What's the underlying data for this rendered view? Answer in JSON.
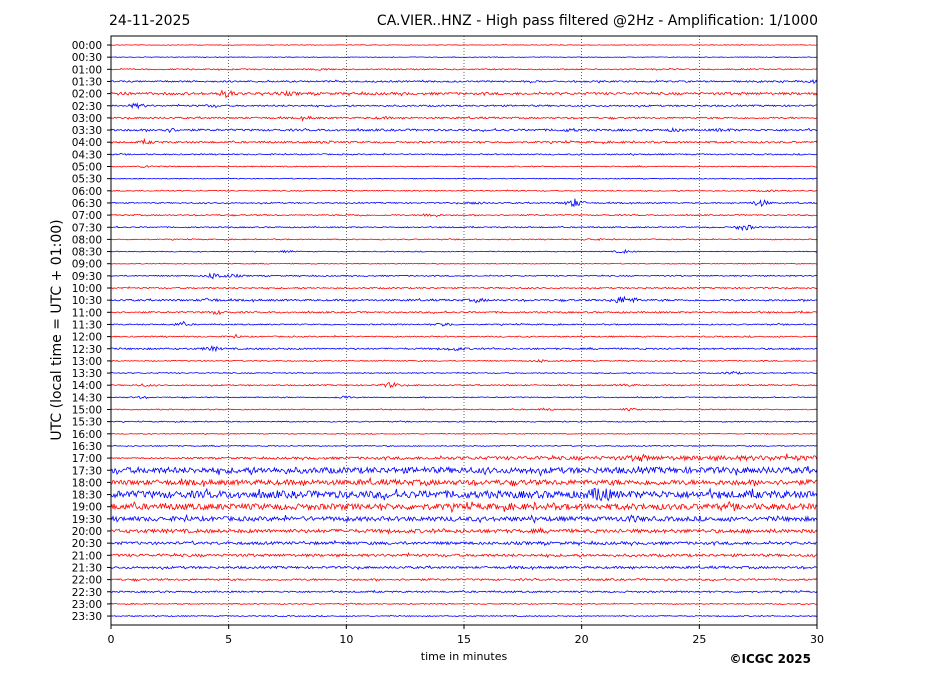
{
  "header": {
    "date": "24-11-2025",
    "title": "CA.VIER..HNZ - High pass filtered @2Hz - Amplification: 1/1000"
  },
  "credit": "©ICGC 2025",
  "colors": {
    "red": "#ff0000",
    "blue": "#0000ff",
    "grid": "#000000"
  },
  "chart_data": {
    "type": "line",
    "title": "CA.VIER..HNZ - High pass filtered @2Hz - Amplification: 1/1000",
    "xlabel": "time in minutes",
    "ylabel": "UTC (local time = UTC + 01:00)",
    "xlim": [
      0,
      30
    ],
    "x_ticks": [
      0,
      5,
      10,
      15,
      20,
      25,
      30
    ],
    "x_tick_labels": [
      "0",
      "5",
      "10",
      "15",
      "20",
      "25",
      "30"
    ],
    "vertical_grid_minutes": [
      5,
      10,
      15,
      20,
      25
    ],
    "rows": [
      {
        "label": "00:00",
        "color": "red",
        "level": 0.3,
        "events": []
      },
      {
        "label": "00:30",
        "color": "blue",
        "level": 0.3,
        "events": []
      },
      {
        "label": "01:00",
        "color": "red",
        "level": 0.6,
        "events": [
          [
            9,
            0.3
          ]
        ]
      },
      {
        "label": "01:30",
        "color": "blue",
        "level": 0.8,
        "events": [
          [
            30,
            0.6
          ]
        ]
      },
      {
        "label": "02:00",
        "color": "red",
        "level": 1.2,
        "events": [
          [
            0.2,
            0.8
          ],
          [
            4.9,
            1.2
          ],
          [
            7.5,
            0.4
          ]
        ]
      },
      {
        "label": "02:30",
        "color": "blue",
        "level": 0.8,
        "events": [
          [
            1.1,
            0.8
          ],
          [
            4.3,
            0.3
          ]
        ]
      },
      {
        "label": "03:00",
        "color": "red",
        "level": 0.8,
        "events": [
          [
            8.3,
            0.4
          ],
          [
            11.5,
            0.3
          ]
        ]
      },
      {
        "label": "03:30",
        "color": "blue",
        "level": 1.0,
        "events": [
          [
            2.5,
            0.6
          ],
          [
            19.5,
            0.4
          ],
          [
            24,
            0.4
          ],
          [
            26,
            0.4
          ]
        ]
      },
      {
        "label": "04:00",
        "color": "red",
        "level": 0.9,
        "events": [
          [
            1.5,
            0.4
          ],
          [
            9.2,
            0.3
          ]
        ]
      },
      {
        "label": "04:30",
        "color": "blue",
        "level": 0.6,
        "events": []
      },
      {
        "label": "05:00",
        "color": "red",
        "level": 0.5,
        "events": [
          [
            1.5,
            0.4
          ]
        ]
      },
      {
        "label": "05:30",
        "color": "blue",
        "level": 0.4,
        "events": []
      },
      {
        "label": "06:00",
        "color": "red",
        "level": 0.5,
        "events": [
          [
            28,
            0.3
          ]
        ]
      },
      {
        "label": "06:30",
        "color": "blue",
        "level": 0.6,
        "events": [
          [
            15.5,
            0.5
          ],
          [
            19.7,
            1.7
          ],
          [
            27.6,
            1.3
          ]
        ]
      },
      {
        "label": "07:00",
        "color": "red",
        "level": 0.6,
        "events": [
          [
            13.6,
            0.8
          ],
          [
            10.5,
            0.3
          ]
        ]
      },
      {
        "label": "07:30",
        "color": "blue",
        "level": 0.6,
        "events": [
          [
            26.9,
            1.2
          ]
        ]
      },
      {
        "label": "08:00",
        "color": "red",
        "level": 0.5,
        "events": [
          [
            20.5,
            0.3
          ]
        ]
      },
      {
        "label": "08:30",
        "color": "blue",
        "level": 0.4,
        "events": [
          [
            21.8,
            0.6
          ],
          [
            7.5,
            0.3
          ]
        ]
      },
      {
        "label": "09:00",
        "color": "red",
        "level": 0.4,
        "events": []
      },
      {
        "label": "09:30",
        "color": "blue",
        "level": 0.6,
        "events": [
          [
            4.4,
            1.2
          ],
          [
            5.2,
            0.5
          ]
        ]
      },
      {
        "label": "10:00",
        "color": "red",
        "level": 0.7,
        "events": []
      },
      {
        "label": "10:30",
        "color": "blue",
        "level": 0.9,
        "events": [
          [
            4.2,
            0.6
          ],
          [
            15.6,
            0.5
          ],
          [
            21.6,
            1.2
          ],
          [
            22.1,
            0.8
          ]
        ]
      },
      {
        "label": "11:00",
        "color": "red",
        "level": 0.8,
        "events": [
          [
            4.5,
            0.6
          ]
        ]
      },
      {
        "label": "11:30",
        "color": "blue",
        "level": 0.6,
        "events": [
          [
            3,
            0.6
          ],
          [
            14.2,
            0.7
          ]
        ]
      },
      {
        "label": "12:00",
        "color": "red",
        "level": 0.6,
        "events": [
          [
            5.3,
            0.3
          ]
        ]
      },
      {
        "label": "12:30",
        "color": "blue",
        "level": 0.8,
        "events": [
          [
            4.3,
            0.8
          ],
          [
            14.6,
            0.6
          ]
        ]
      },
      {
        "label": "13:00",
        "color": "red",
        "level": 0.5,
        "events": [
          [
            18.3,
            0.5
          ]
        ]
      },
      {
        "label": "13:30",
        "color": "blue",
        "level": 0.5,
        "events": [
          [
            26.4,
            0.6
          ]
        ]
      },
      {
        "label": "14:00",
        "color": "red",
        "level": 0.6,
        "events": [
          [
            11.9,
            1.0
          ],
          [
            1.4,
            0.4
          ],
          [
            21.9,
            0.4
          ]
        ]
      },
      {
        "label": "14:30",
        "color": "blue",
        "level": 0.5,
        "events": [
          [
            9.9,
            0.5
          ],
          [
            1.2,
            0.3
          ]
        ]
      },
      {
        "label": "15:00",
        "color": "red",
        "level": 0.5,
        "events": [
          [
            22,
            0.4
          ],
          [
            18.5,
            0.3
          ]
        ]
      },
      {
        "label": "15:30",
        "color": "blue",
        "level": 0.5,
        "events": []
      },
      {
        "label": "16:00",
        "color": "red",
        "level": 0.4,
        "events": []
      },
      {
        "label": "16:30",
        "color": "blue",
        "level": 0.5,
        "events": []
      },
      {
        "label": "17:00",
        "color": "red",
        "level": 1.0,
        "ramp": [
          0.5,
          2.6
        ],
        "events": [
          [
            22.5,
            0.8
          ]
        ]
      },
      {
        "label": "17:30",
        "color": "blue",
        "level": 3.0,
        "events": []
      },
      {
        "label": "18:00",
        "color": "red",
        "level": 2.5,
        "events": []
      },
      {
        "label": "18:30",
        "color": "blue",
        "level": 3.6,
        "events": [
          [
            20.8,
            3.0
          ]
        ]
      },
      {
        "label": "19:00",
        "color": "red",
        "level": 3.0,
        "events": []
      },
      {
        "label": "19:30",
        "color": "blue",
        "level": 2.2,
        "events": [
          [
            22.1,
            0.8
          ]
        ]
      },
      {
        "label": "20:00",
        "color": "red",
        "level": 1.8,
        "events": []
      },
      {
        "label": "20:30",
        "color": "blue",
        "level": 1.4,
        "events": []
      },
      {
        "label": "21:00",
        "color": "red",
        "level": 1.3,
        "events": []
      },
      {
        "label": "21:30",
        "color": "blue",
        "level": 1.1,
        "events": []
      },
      {
        "label": "22:00",
        "color": "red",
        "level": 0.9,
        "events": []
      },
      {
        "label": "22:30",
        "color": "blue",
        "level": 0.8,
        "events": []
      },
      {
        "label": "23:00",
        "color": "red",
        "level": 0.5,
        "events": []
      },
      {
        "label": "23:30",
        "color": "blue",
        "level": 0.5,
        "events": []
      }
    ]
  }
}
